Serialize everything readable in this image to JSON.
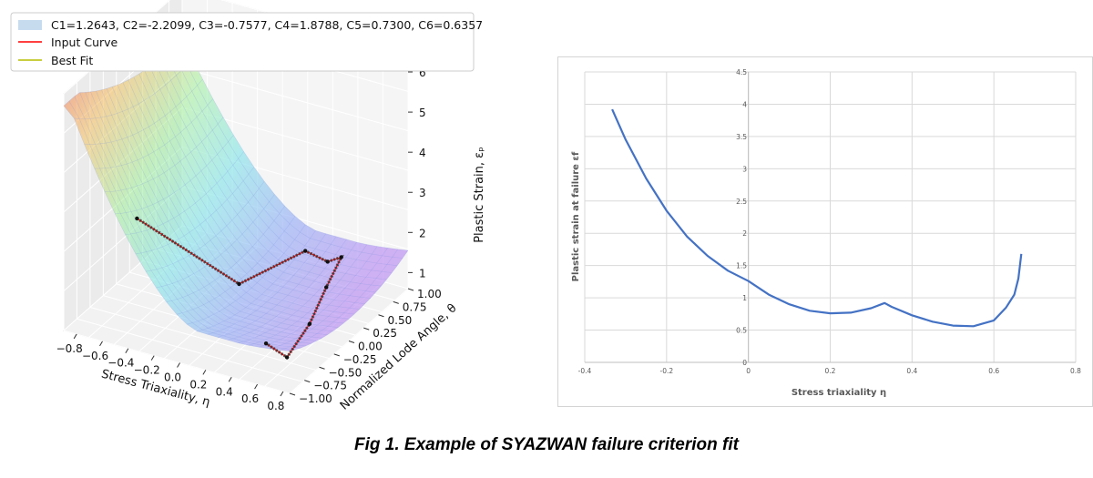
{
  "caption": "Fig 1. Example of SYAZWAN failure criterion fit",
  "chart_data": [
    {
      "type": "surface3d",
      "legend": {
        "placement": "top-left",
        "entries": [
          {
            "label": "C1=1.2643, C2=-2.2099, C3=-0.7577, C4=1.8788, C5=0.7300, C6=0.6357",
            "color": "#c7dbef",
            "kind": "patch"
          },
          {
            "label": "Input Curve",
            "color": "#ff0000",
            "kind": "line"
          },
          {
            "label": "Best Fit",
            "color": "#b5bd00",
            "kind": "line"
          }
        ]
      },
      "xlabel": "Stress Triaxiality, η",
      "ylabel": "Normalized Lode Angle, θ",
      "zlabel": "Plastic Strain, εₚ",
      "xlim": [
        -0.9,
        0.85
      ],
      "ylim": [
        -1.0,
        1.0
      ],
      "zlim": [
        0.6,
        6.5
      ],
      "xticks": [
        "−0.8",
        "−0.6",
        "−0.4",
        "−0.2",
        "0.0",
        "0.2",
        "0.4",
        "0.6",
        "0.8"
      ],
      "yticks": [
        "−1.00",
        "−0.75",
        "−0.50",
        "−0.25",
        "0.00",
        "0.25",
        "0.50",
        "0.75",
        "1.00"
      ],
      "zticks": [
        "1",
        "2",
        "3",
        "4",
        "5",
        "6"
      ],
      "coefficients": {
        "C1": 1.2643,
        "C2": -2.2099,
        "C3": -0.7577,
        "C4": 1.8788,
        "C5": 0.73,
        "C6": 0.6357
      },
      "fit_points": [
        {
          "eta": -0.333,
          "theta": -1.0,
          "eps": 3.9
        },
        {
          "eta": 0.0,
          "theta": 0.0,
          "eps": 1.26
        },
        {
          "eta": 0.1,
          "theta": 0.9,
          "eps": 1.0
        },
        {
          "eta": 0.25,
          "theta": 0.95,
          "eps": 0.8
        },
        {
          "eta": 0.333,
          "theta": 1.0,
          "eps": 0.92
        },
        {
          "eta": 0.4,
          "theta": 0.6,
          "eps": 0.75
        },
        {
          "eta": 0.5,
          "theta": 0.1,
          "eps": 0.58
        },
        {
          "eta": 0.6,
          "theta": -0.5,
          "eps": 0.62
        },
        {
          "eta": 0.667,
          "theta": -1.0,
          "eps": 1.68
        }
      ]
    },
    {
      "type": "line",
      "xlabel": "Stress triaxiality  η",
      "ylabel": "Plastic strain at failure εf",
      "xlim": [
        -0.4,
        0.8
      ],
      "ylim": [
        0,
        4.5
      ],
      "xticks": [
        -0.4,
        -0.2,
        0,
        0.2,
        0.4,
        0.6,
        0.8
      ],
      "yticks": [
        0,
        0.5,
        1,
        1.5,
        2,
        2.5,
        3,
        3.5,
        4,
        4.5
      ],
      "xtick_labels": [
        "-0.4",
        "-0.2",
        "0",
        "0.2",
        "0.4",
        "0.6",
        "0.8"
      ],
      "ytick_labels": [
        "0",
        "0.5",
        "1",
        "1.5",
        "2",
        "2.5",
        "3",
        "3.5",
        "4",
        "4.5"
      ],
      "grid": true,
      "series": [
        {
          "name": "Plastic strain at failure",
          "color": "#4472c4",
          "x": [
            -0.333,
            -0.3,
            -0.25,
            -0.2,
            -0.15,
            -0.1,
            -0.05,
            0.0,
            0.05,
            0.1,
            0.15,
            0.2,
            0.25,
            0.3,
            0.333,
            0.35,
            0.4,
            0.45,
            0.5,
            0.55,
            0.6,
            0.63,
            0.65,
            0.66,
            0.667
          ],
          "y": [
            3.92,
            3.45,
            2.85,
            2.35,
            1.95,
            1.65,
            1.42,
            1.26,
            1.05,
            0.9,
            0.8,
            0.76,
            0.77,
            0.84,
            0.92,
            0.86,
            0.73,
            0.63,
            0.57,
            0.56,
            0.65,
            0.85,
            1.05,
            1.3,
            1.68
          ]
        }
      ]
    }
  ]
}
